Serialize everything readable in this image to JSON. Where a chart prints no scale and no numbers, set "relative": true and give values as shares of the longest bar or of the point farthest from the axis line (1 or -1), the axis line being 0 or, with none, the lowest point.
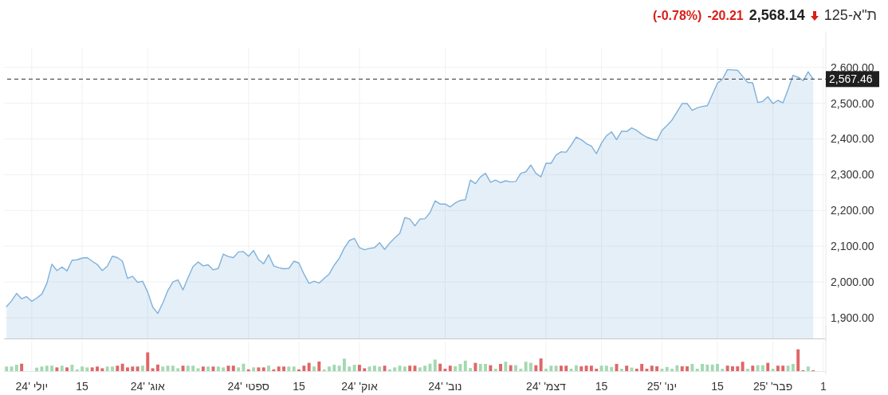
{
  "chart_data": [
    {
      "type": "area",
      "title": "ת\"א-125",
      "annotations": [
        "2,568.14",
        "-20.21",
        "(-0.78%)"
      ],
      "categories": [
        null,
        null,
        null,
        null,
        null,
        null,
        null,
        null,
        null,
        null,
        null,
        null,
        null,
        null,
        null,
        null,
        null,
        null,
        null,
        null,
        null,
        null,
        null,
        null,
        null,
        null,
        null,
        null,
        null,
        null,
        null,
        null,
        null,
        null,
        null,
        null,
        null,
        null,
        null,
        null,
        null,
        null,
        null,
        null,
        null,
        null,
        null,
        null,
        null,
        null,
        null,
        null,
        null,
        null,
        null,
        null,
        null,
        null,
        null,
        null,
        null,
        null,
        null,
        null,
        null,
        null,
        null,
        null,
        null,
        null,
        null,
        null,
        null,
        null,
        null,
        null,
        null,
        null,
        null,
        null,
        null,
        null,
        null,
        null,
        null,
        null,
        null,
        null,
        null,
        null,
        null,
        null,
        null,
        null,
        null,
        null,
        null,
        null,
        null,
        null,
        null,
        null,
        null,
        null,
        null,
        null,
        null,
        null,
        null,
        null,
        null,
        null,
        null,
        null,
        null,
        null,
        null,
        null,
        null,
        null,
        null,
        null,
        null,
        null,
        null,
        null,
        null,
        null,
        null,
        null,
        null,
        null,
        null,
        null,
        null,
        null,
        null,
        null,
        null,
        null,
        null,
        null,
        null,
        null,
        null,
        null,
        null,
        null,
        null,
        null,
        null,
        null,
        null,
        null,
        null,
        null,
        null,
        null,
        null,
        null,
        null,
        null,
        null
      ],
      "series": [
        {
          "color": "#7fb1da",
          "values": [
            1931,
            1947,
            1968,
            1953,
            1959,
            1946,
            1955,
            1966,
            1996,
            2050,
            2032,
            2042,
            2031,
            2061,
            2062,
            2067,
            2068,
            2058,
            2049,
            2032,
            2044,
            2072,
            2068,
            2058,
            2010,
            2016,
            1999,
            2002,
            1972,
            1930,
            1912,
            1941,
            1976,
            2000,
            2006,
            1978,
            2012,
            2043,
            2056,
            2045,
            2048,
            2034,
            2038,
            2078,
            2071,
            2068,
            2084,
            2085,
            2072,
            2088,
            2062,
            2051,
            2076,
            2045,
            2040,
            2037,
            2038,
            2058,
            2053,
            2022,
            1996,
            2002,
            1997,
            2010,
            2022,
            2047,
            2066,
            2095,
            2116,
            2122,
            2096,
            2090,
            2094,
            2096,
            2110,
            2091,
            2109,
            2123,
            2136,
            2180,
            2176,
            2157,
            2176,
            2177,
            2194,
            2227,
            2218,
            2218,
            2210,
            2221,
            2228,
            2230,
            2285,
            2275,
            2294,
            2304,
            2279,
            2285,
            2278,
            2283,
            2280,
            2281,
            2304,
            2308,
            2327,
            2304,
            2294,
            2332,
            2332,
            2355,
            2364,
            2363,
            2383,
            2405,
            2398,
            2387,
            2380,
            2359,
            2388,
            2409,
            2420,
            2398,
            2422,
            2421,
            2431,
            2424,
            2413,
            2405,
            2400,
            2396,
            2424,
            2438,
            2453,
            2476,
            2499,
            2499,
            2480,
            2487,
            2491,
            2493,
            2524,
            2556,
            2567,
            2594,
            2593,
            2592,
            2575,
            2558,
            2557,
            2502,
            2505,
            2518,
            2499,
            2508,
            2501,
            2538,
            2578,
            2573,
            2563,
            2588,
            2567,
            null,
            null
          ]
        }
      ],
      "ylim": [
        1842,
        2655
      ],
      "yticks": [
        {
          "value": 1900,
          "label": "1,900.00"
        },
        {
          "value": 2000,
          "label": "2,000.00"
        },
        {
          "value": 2100,
          "label": "2,100.00"
        },
        {
          "value": 2200,
          "label": "2,200.00"
        },
        {
          "value": 2300,
          "label": "2,300.00"
        },
        {
          "value": 2400,
          "label": "2,400.00"
        },
        {
          "value": 2500,
          "label": "2,500.00"
        },
        {
          "value": 2600,
          "label": "2,600.00"
        }
      ],
      "ref_lines": [
        {
          "axis": "y",
          "value": 2567.46,
          "label": "2,567.46",
          "color": "#555555",
          "line_style": "dashed"
        }
      ],
      "grid": true,
      "tick_labels": "y"
    },
    {
      "type": "bar",
      "relative": true,
      "categories": [
        null,
        null,
        null,
        null,
        null,
        "יולי '24",
        null,
        null,
        null,
        null,
        null,
        null,
        null,
        null,
        null,
        "15",
        null,
        null,
        null,
        null,
        null,
        null,
        null,
        null,
        null,
        null,
        null,
        null,
        "אוג' '24",
        null,
        null,
        null,
        null,
        null,
        null,
        null,
        null,
        null,
        null,
        null,
        null,
        null,
        null,
        null,
        null,
        null,
        null,
        null,
        "ספטי '24",
        null,
        null,
        null,
        null,
        null,
        null,
        null,
        null,
        null,
        "15",
        null,
        null,
        null,
        null,
        null,
        null,
        null,
        null,
        null,
        null,
        null,
        "אוק' '24",
        null,
        null,
        null,
        null,
        null,
        null,
        null,
        null,
        null,
        null,
        null,
        null,
        null,
        null,
        null,
        null,
        "נוב' '24",
        null,
        null,
        null,
        null,
        null,
        null,
        null,
        null,
        null,
        null,
        null,
        null,
        null,
        null,
        null,
        null,
        null,
        null,
        null,
        "דצמ' '24",
        null,
        null,
        null,
        null,
        null,
        null,
        null,
        null,
        null,
        null,
        "15",
        null,
        null,
        null,
        null,
        null,
        null,
        null,
        null,
        null,
        null,
        null,
        "ינו' '25",
        null,
        null,
        null,
        null,
        null,
        null,
        null,
        null,
        null,
        null,
        "15",
        null,
        null,
        null,
        null,
        null,
        null,
        null,
        null,
        null,
        null,
        "פבר' '25",
        null,
        null,
        null,
        null,
        null,
        null,
        null,
        null,
        null,
        "1"
      ],
      "values": [
        0.21,
        0.21,
        0.29,
        0.34,
        null,
        null,
        0.16,
        0.21,
        0.25,
        0.25,
        0.17,
        0.25,
        0.17,
        0.29,
        0.08,
        0.21,
        0.17,
        0.17,
        0.21,
        0.13,
        0.21,
        0.21,
        0.25,
        0.34,
        0.17,
        0.21,
        0.21,
        0.25,
        0.86,
        0.13,
        0.3,
        0.21,
        0.25,
        0.25,
        0.13,
        0.25,
        0.25,
        0.25,
        0.13,
        0.21,
        0.21,
        0.21,
        0.21,
        0.17,
        0.25,
        0.25,
        0.17,
        0.34,
        0.08,
        0.17,
        0.17,
        0.17,
        0.25,
        0.08,
        0.21,
        0.21,
        0.21,
        0.21,
        0.08,
        0.25,
        0.38,
        0.21,
        0.44,
        0.08,
        0.21,
        0.29,
        0.25,
        0.57,
        0.21,
        0.29,
        0.29,
        0.13,
        0.21,
        0.25,
        0.21,
        0.25,
        0.08,
        0.17,
        0.25,
        0.21,
        0.25,
        0.25,
        0.17,
        0.25,
        0.34,
        0.53,
        0.34,
        0.11,
        0.25,
        0.22,
        0.33,
        0.48,
        0.14,
        0.38,
        0.33,
        0.33,
        0.27,
        0.11,
        0.33,
        0.43,
        0.27,
        0.27,
        0.11,
        0.43,
        0.38,
        0.27,
        0.58,
        0.11,
        0.25,
        0.25,
        0.25,
        0.25,
        0.11,
        0.27,
        0.22,
        0.25,
        0.25,
        0.11,
        0.25,
        0.25,
        0.19,
        0.33,
        0.11,
        0.25,
        0.16,
        0.11,
        0.33,
        0.11,
        0.25,
        0.22,
        0.11,
        0.19,
        0.11,
        0.27,
        0.22,
        0.22,
        0.33,
        0.11,
        0.33,
        0.3,
        0.3,
        0.33,
        0.11,
        0.25,
        0.22,
        0.22,
        0.43,
        0.11,
        0.25,
        0.27,
        0.27,
        0.38,
        0.11,
        0.25,
        0.25,
        0.25,
        0.33,
        1,
        0.04,
        0.21,
        0.04,
        null,
        null
      ],
      "colors": [
        "#a3d9b1",
        "#a3d9b1",
        "#a3d9b1",
        "#e06666",
        null,
        null,
        "#a3d9b1",
        "#a3d9b1",
        "#a3d9b1",
        "#a3d9b1",
        "#e06666",
        "#a3d9b1",
        "#e06666",
        "#a3d9b1",
        "#a3d9b1",
        "#a3d9b1",
        "#a3d9b1",
        "#e06666",
        "#e06666",
        "#e06666",
        "#a3d9b1",
        "#a3d9b1",
        "#e06666",
        "#e06666",
        "#e06666",
        "#e06666",
        "#e06666",
        "#a3d9b1",
        "#e06666",
        "#e06666",
        "#e06666",
        "#a3d9b1",
        "#a3d9b1",
        "#a3d9b1",
        "#a3d9b1",
        "#e06666",
        "#a3d9b1",
        "#a3d9b1",
        "#a3d9b1",
        "#e06666",
        "#a3d9b1",
        "#e06666",
        "#a3d9b1",
        "#a3d9b1",
        "#e06666",
        "#e06666",
        "#a3d9b1",
        "#a3d9b1",
        "#e06666",
        "#a3d9b1",
        "#e06666",
        "#e06666",
        "#a3d9b1",
        "#e06666",
        "#e06666",
        "#e06666",
        "#a3d9b1",
        "#a3d9b1",
        "#e06666",
        "#e06666",
        "#e06666",
        "#a3d9b1",
        "#e06666",
        "#a3d9b1",
        "#a3d9b1",
        "#a3d9b1",
        "#a3d9b1",
        "#a3d9b1",
        "#a3d9b1",
        "#a3d9b1",
        "#e06666",
        "#e06666",
        "#a3d9b1",
        "#a3d9b1",
        "#a3d9b1",
        "#e06666",
        "#a3d9b1",
        "#a3d9b1",
        "#a3d9b1",
        "#a3d9b1",
        "#e06666",
        "#e06666",
        "#a3d9b1",
        "#a3d9b1",
        "#a3d9b1",
        "#a3d9b1",
        "#e06666",
        "#e06666",
        "#e06666",
        "#a3d9b1",
        "#a3d9b1",
        "#a3d9b1",
        "#a3d9b1",
        "#e06666",
        "#a3d9b1",
        "#a3d9b1",
        "#e06666",
        "#a3d9b1",
        "#e06666",
        "#a3d9b1",
        "#e06666",
        "#a3d9b1",
        "#a3d9b1",
        "#a3d9b1",
        "#a3d9b1",
        "#e06666",
        "#e06666",
        "#a3d9b1",
        "#a3d9b1",
        "#a3d9b1",
        "#e06666",
        "#e06666",
        "#a3d9b1",
        "#a3d9b1",
        "#e06666",
        "#e06666",
        "#e06666",
        "#e06666",
        "#a3d9b1",
        "#a3d9b1",
        "#a3d9b1",
        "#e06666",
        "#a3d9b1",
        "#e06666",
        "#a3d9b1",
        "#e06666",
        "#e06666",
        "#e06666",
        "#e06666",
        "#e06666",
        "#a3d9b1",
        "#a3d9b1",
        "#a3d9b1",
        "#a3d9b1",
        "#e06666",
        "#e06666",
        "#a3d9b1",
        "#a3d9b1",
        "#a3d9b1",
        "#a3d9b1",
        "#a3d9b1",
        "#a3d9b1",
        "#a3d9b1",
        "#e06666",
        "#e06666",
        "#e06666",
        "#e06666",
        "#a3d9b1",
        "#e06666",
        "#a3d9b1",
        "#a3d9b1",
        "#e06666",
        "#a3d9b1",
        "#e06666",
        "#e06666",
        "#a3d9b1",
        "#a3d9b1",
        "#e06666",
        "#e06666",
        "#a3d9b1",
        "#e06666",
        null,
        null
      ],
      "grid": "x",
      "tick_labels": "x"
    }
  ]
}
